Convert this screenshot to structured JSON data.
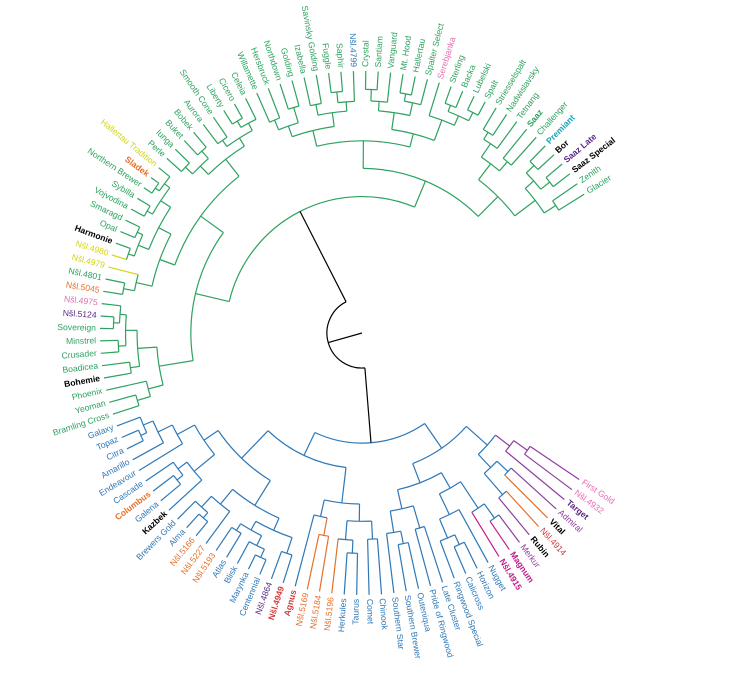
{
  "diagram": {
    "type": "circular-dendrogram",
    "colors": {
      "green": "#2ca25f",
      "blue": "#2e78b7",
      "black": "#000000",
      "yellow": "#d4d416",
      "orange": "#e6702a",
      "pink": "#e56db1",
      "purple": "#5b2a86",
      "red": "#d33b3b",
      "magenta": "#c51b8a",
      "cyan": "#16a6b8",
      "violet": "#8e3fa0"
    },
    "clades": {
      "green_root": "green",
      "blue_root": "blue",
      "yellow_pair": "yellow",
      "orange_pair": "orange",
      "orange_magnum": "orange",
      "purple_group": "violet",
      "magenta_pair": "magenta"
    },
    "leaves": [
      {
        "label": "Glacier",
        "color": "green",
        "bold": false,
        "branch": "green"
      },
      {
        "label": "Zenith",
        "color": "green",
        "bold": false,
        "branch": "green"
      },
      {
        "label": "Saaz Special",
        "color": "black",
        "bold": true,
        "branch": "green"
      },
      {
        "label": "Saaz Late",
        "color": "purple",
        "bold": true,
        "branch": "green"
      },
      {
        "label": "Bor",
        "color": "black",
        "bold": true,
        "branch": "green"
      },
      {
        "label": "Premiant",
        "color": "cyan",
        "bold": true,
        "branch": "green"
      },
      {
        "label": "Challenger",
        "color": "green",
        "bold": false,
        "branch": "green"
      },
      {
        "label": "Saaz",
        "color": "green",
        "bold": true,
        "branch": "green"
      },
      {
        "label": "Tetnang",
        "color": "green",
        "bold": false,
        "branch": "green"
      },
      {
        "label": "Nadwislavsky",
        "color": "green",
        "bold": false,
        "branch": "green"
      },
      {
        "label": "Striesselspalt",
        "color": "green",
        "bold": false,
        "branch": "green"
      },
      {
        "label": "Spalt",
        "color": "green",
        "bold": false,
        "branch": "green"
      },
      {
        "label": "Lubelski",
        "color": "green",
        "bold": false,
        "branch": "green"
      },
      {
        "label": "Backa",
        "color": "green",
        "bold": false,
        "branch": "green"
      },
      {
        "label": "Sterling",
        "color": "green",
        "bold": false,
        "branch": "green"
      },
      {
        "label": "Serebjanka",
        "color": "pink",
        "bold": false,
        "branch": "green"
      },
      {
        "label": "Spalter Select",
        "color": "green",
        "bold": false,
        "branch": "green"
      },
      {
        "label": "Hallertau",
        "color": "green",
        "bold": false,
        "branch": "green"
      },
      {
        "label": "Mt. Hood",
        "color": "green",
        "bold": false,
        "branch": "green"
      },
      {
        "label": "Vanguard",
        "color": "green",
        "bold": false,
        "branch": "green"
      },
      {
        "label": "Santiam",
        "color": "green",
        "bold": false,
        "branch": "green"
      },
      {
        "label": "Crystal",
        "color": "green",
        "bold": false,
        "branch": "green"
      },
      {
        "label": "Nšl.4799",
        "color": "blue",
        "bold": false,
        "branch": "green"
      },
      {
        "label": "Saphir",
        "color": "green",
        "bold": false,
        "branch": "green"
      },
      {
        "label": "Fuggle",
        "color": "green",
        "bold": false,
        "branch": "green"
      },
      {
        "label": "Savinsky Golding",
        "color": "green",
        "bold": false,
        "branch": "green"
      },
      {
        "label": "Izabella",
        "color": "green",
        "bold": false,
        "branch": "green"
      },
      {
        "label": "Golding",
        "color": "green",
        "bold": false,
        "branch": "green"
      },
      {
        "label": "Northdown",
        "color": "green",
        "bold": false,
        "branch": "green"
      },
      {
        "label": "Hersbruck",
        "color": "green",
        "bold": false,
        "branch": "green"
      },
      {
        "label": "Willamette",
        "color": "green",
        "bold": false,
        "branch": "green"
      },
      {
        "label": "Celeia",
        "color": "green",
        "bold": false,
        "branch": "green"
      },
      {
        "label": "Cicero",
        "color": "green",
        "bold": false,
        "branch": "green"
      },
      {
        "label": "Liberty",
        "color": "green",
        "bold": false,
        "branch": "green"
      },
      {
        "label": "Smooth Cone",
        "color": "green",
        "bold": false,
        "branch": "green"
      },
      {
        "label": "Aurora",
        "color": "green",
        "bold": false,
        "branch": "green"
      },
      {
        "label": "Bobek",
        "color": "green",
        "bold": false,
        "branch": "green"
      },
      {
        "label": "Buket",
        "color": "green",
        "bold": false,
        "branch": "green"
      },
      {
        "label": "Iunga",
        "color": "green",
        "bold": false,
        "branch": "green"
      },
      {
        "label": "Perle",
        "color": "green",
        "bold": false,
        "branch": "green"
      },
      {
        "label": "Hallertau Tradition",
        "color": "yellow",
        "bold": false,
        "branch": "green"
      },
      {
        "label": "Sladek",
        "color": "orange",
        "bold": true,
        "branch": "green"
      },
      {
        "label": "Northern Brewer",
        "color": "green",
        "bold": false,
        "branch": "green"
      },
      {
        "label": "Sybilla",
        "color": "green",
        "bold": false,
        "branch": "green"
      },
      {
        "label": "Vojvodina",
        "color": "green",
        "bold": false,
        "branch": "green"
      },
      {
        "label": "Smaragd",
        "color": "green",
        "bold": false,
        "branch": "green"
      },
      {
        "label": "Opal",
        "color": "green",
        "bold": false,
        "branch": "green"
      },
      {
        "label": "Harmonie",
        "color": "black",
        "bold": true,
        "branch": "green"
      },
      {
        "label": "Nšl.4980",
        "color": "yellow",
        "bold": false,
        "branch": "yellow"
      },
      {
        "label": "Nšl.4979",
        "color": "yellow",
        "bold": false,
        "branch": "yellow"
      },
      {
        "label": "Nšl.4801",
        "color": "green",
        "bold": false,
        "branch": "green"
      },
      {
        "label": "Nšl.5045",
        "color": "orange",
        "bold": false,
        "branch": "green"
      },
      {
        "label": "Nšl.4975",
        "color": "pink",
        "bold": false,
        "branch": "green"
      },
      {
        "label": "Nšl.5124",
        "color": "purple",
        "bold": false,
        "branch": "green"
      },
      {
        "label": "Sovereign",
        "color": "green",
        "bold": false,
        "branch": "green"
      },
      {
        "label": "Minstrel",
        "color": "green",
        "bold": false,
        "branch": "green"
      },
      {
        "label": "Crusader",
        "color": "green",
        "bold": false,
        "branch": "green"
      },
      {
        "label": "Boadicea",
        "color": "green",
        "bold": false,
        "branch": "green"
      },
      {
        "label": "Bohemie",
        "color": "black",
        "bold": true,
        "branch": "green"
      },
      {
        "label": "Phoenix",
        "color": "green",
        "bold": false,
        "branch": "green"
      },
      {
        "label": "Yeoman",
        "color": "green",
        "bold": false,
        "branch": "green"
      },
      {
        "label": "Bramling Cross",
        "color": "green",
        "bold": false,
        "branch": "green"
      },
      {
        "label": "Galaxy",
        "color": "blue",
        "bold": false,
        "branch": "blue"
      },
      {
        "label": "Topaz",
        "color": "blue",
        "bold": false,
        "branch": "blue"
      },
      {
        "label": "Citra",
        "color": "blue",
        "bold": false,
        "branch": "blue"
      },
      {
        "label": "Amarillo",
        "color": "blue",
        "bold": false,
        "branch": "blue"
      },
      {
        "label": "Endeavour",
        "color": "blue",
        "bold": false,
        "branch": "blue"
      },
      {
        "label": "Cascade",
        "color": "blue",
        "bold": false,
        "branch": "blue"
      },
      {
        "label": "Columbus",
        "color": "orange",
        "bold": true,
        "branch": "blue"
      },
      {
        "label": "Galena",
        "color": "blue",
        "bold": false,
        "branch": "blue"
      },
      {
        "label": "Kazbek",
        "color": "black",
        "bold": true,
        "branch": "blue"
      },
      {
        "label": "Brewers Gold",
        "color": "blue",
        "bold": false,
        "branch": "blue"
      },
      {
        "label": "Alma",
        "color": "blue",
        "bold": false,
        "branch": "blue"
      },
      {
        "label": "Nšl.5166",
        "color": "orange",
        "bold": false,
        "branch": "blue"
      },
      {
        "label": "Nšl.5227",
        "color": "orange",
        "bold": false,
        "branch": "blue"
      },
      {
        "label": "Nšl.5193",
        "color": "orange",
        "bold": false,
        "branch": "blue"
      },
      {
        "label": "Atlas",
        "color": "blue",
        "bold": false,
        "branch": "blue"
      },
      {
        "label": "Blisk",
        "color": "blue",
        "bold": false,
        "branch": "blue"
      },
      {
        "label": "Marynka",
        "color": "blue",
        "bold": false,
        "branch": "blue"
      },
      {
        "label": "Centennial",
        "color": "blue",
        "bold": false,
        "branch": "blue"
      },
      {
        "label": "Nšl.4864",
        "color": "purple",
        "bold": false,
        "branch": "blue"
      },
      {
        "label": "Nšl.4949",
        "color": "red",
        "bold": true,
        "branch": "blue"
      },
      {
        "label": "Agnus",
        "color": "red",
        "bold": true,
        "branch": "blue"
      },
      {
        "label": "Nšl.5169",
        "color": "orange",
        "bold": false,
        "branch": "orange"
      },
      {
        "label": "Nšl.5184",
        "color": "orange",
        "bold": false,
        "branch": "orange"
      },
      {
        "label": "Nšl.5196",
        "color": "orange",
        "bold": false,
        "branch": "orange"
      },
      {
        "label": "Herkules",
        "color": "blue",
        "bold": false,
        "branch": "blue"
      },
      {
        "label": "Taurus",
        "color": "blue",
        "bold": false,
        "branch": "blue"
      },
      {
        "label": "Comet",
        "color": "blue",
        "bold": false,
        "branch": "blue"
      },
      {
        "label": "Chinook",
        "color": "blue",
        "bold": false,
        "branch": "blue"
      },
      {
        "label": "Southern Star",
        "color": "blue",
        "bold": false,
        "branch": "blue"
      },
      {
        "label": "Southern Brewer",
        "color": "blue",
        "bold": false,
        "branch": "blue"
      },
      {
        "label": "Outeniqua",
        "color": "blue",
        "bold": false,
        "branch": "blue"
      },
      {
        "label": "Pride of Ringwood",
        "color": "blue",
        "bold": false,
        "branch": "blue"
      },
      {
        "label": "Late Cluster",
        "color": "blue",
        "bold": false,
        "branch": "blue"
      },
      {
        "label": "Ringwood Special",
        "color": "blue",
        "bold": false,
        "branch": "blue"
      },
      {
        "label": "Calicross",
        "color": "blue",
        "bold": false,
        "branch": "blue"
      },
      {
        "label": "Horizon",
        "color": "blue",
        "bold": false,
        "branch": "blue"
      },
      {
        "label": "Nugget",
        "color": "blue",
        "bold": false,
        "branch": "blue"
      },
      {
        "label": "Nšl.4915",
        "color": "magenta",
        "bold": true,
        "branch": "magenta"
      },
      {
        "label": "Magnum",
        "color": "magenta",
        "bold": true,
        "branch": "magenta"
      },
      {
        "label": "Merkur",
        "color": "violet",
        "bold": false,
        "branch": "violet"
      },
      {
        "label": "Rubin",
        "color": "black",
        "bold": true,
        "branch": "violet"
      },
      {
        "label": "Nšl.4914",
        "color": "red",
        "bold": false,
        "branch": "orange"
      },
      {
        "label": "Vital",
        "color": "black",
        "bold": true,
        "branch": "orange"
      },
      {
        "label": "Admiral",
        "color": "violet",
        "bold": false,
        "branch": "violet"
      },
      {
        "label": "Target",
        "color": "purple",
        "bold": true,
        "branch": "violet"
      },
      {
        "label": "Nšl.4932",
        "color": "pink",
        "bold": false,
        "branch": "violet"
      },
      {
        "label": "First Gold",
        "color": "pink",
        "bold": false,
        "branch": "violet"
      }
    ]
  }
}
